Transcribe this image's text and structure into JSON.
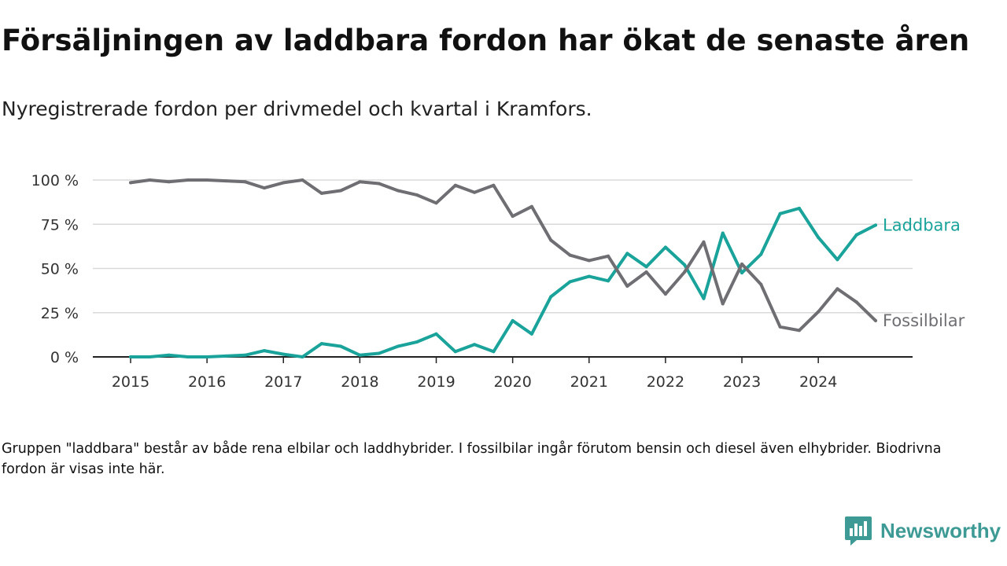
{
  "title": "Försäljningen av laddbara fordon har ökat de senaste åren",
  "subtitle": "Nyregistrerade fordon per drivmedel och kvartal i Kramfors.",
  "footnote": "Gruppen \"laddbara\" består av både rena elbilar och laddhybrider. I fossilbilar ingår förutom bensin och diesel även elhybrider. Biodrivna fordon är visas inte här.",
  "brand": {
    "name": "Newsworthy",
    "icon": "newsworthy-logo-icon",
    "color": "#3d9a94"
  },
  "chart_data": {
    "type": "line",
    "title": "Försäljningen av laddbara fordon har ökat de senaste åren",
    "xlabel": "",
    "ylabel": "",
    "ylim": [
      0,
      100
    ],
    "y_ticks": [
      0,
      25,
      50,
      75,
      100
    ],
    "y_tick_labels": [
      "0 %",
      "25 %",
      "50 %",
      "75 %",
      "100 %"
    ],
    "x_range": [
      2015,
      2024.75
    ],
    "x_ticks": [
      2015,
      2016,
      2017,
      2018,
      2019,
      2020,
      2021,
      2022,
      2023,
      2024
    ],
    "x_tick_labels": [
      "2015",
      "2016",
      "2017",
      "2018",
      "2019",
      "2020",
      "2021",
      "2022",
      "2023",
      "2024"
    ],
    "grid": true,
    "x": [
      2015,
      2015.25,
      2015.5,
      2015.75,
      2016,
      2016.25,
      2016.5,
      2016.75,
      2017,
      2017.25,
      2017.5,
      2017.75,
      2018,
      2018.25,
      2018.5,
      2018.75,
      2019,
      2019.25,
      2019.5,
      2019.75,
      2020,
      2020.25,
      2020.5,
      2020.75,
      2021,
      2021.25,
      2021.5,
      2021.75,
      2022,
      2022.25,
      2022.5,
      2022.75,
      2023,
      2023.25,
      2023.5,
      2023.75,
      2024,
      2024.25,
      2024.5,
      2024.75
    ],
    "series": [
      {
        "name": "Laddbara",
        "color": "#1aa39a",
        "values": [
          0,
          0,
          1,
          0,
          0,
          0.5,
          1,
          3.5,
          1.5,
          0,
          7.5,
          6,
          1,
          2,
          6,
          8.5,
          13,
          3,
          7,
          3,
          20.5,
          13,
          34,
          42.5,
          45.5,
          43,
          58.5,
          51,
          62,
          52,
          33,
          70,
          47.5,
          58,
          81,
          84,
          67.5,
          55,
          69,
          74.5
        ]
      },
      {
        "name": "Fossilbilar",
        "color": "#6e6e73",
        "values": [
          98.5,
          100,
          99,
          100,
          100,
          99.5,
          99,
          95.5,
          98.5,
          100,
          92.5,
          94,
          99,
          98,
          94,
          91.5,
          87,
          97,
          93,
          97,
          79.5,
          85,
          66,
          57.5,
          54.5,
          57,
          40,
          48,
          35.5,
          48,
          65,
          30,
          52.5,
          41,
          17,
          15,
          25.5,
          38.5,
          31,
          20.5
        ]
      }
    ]
  }
}
